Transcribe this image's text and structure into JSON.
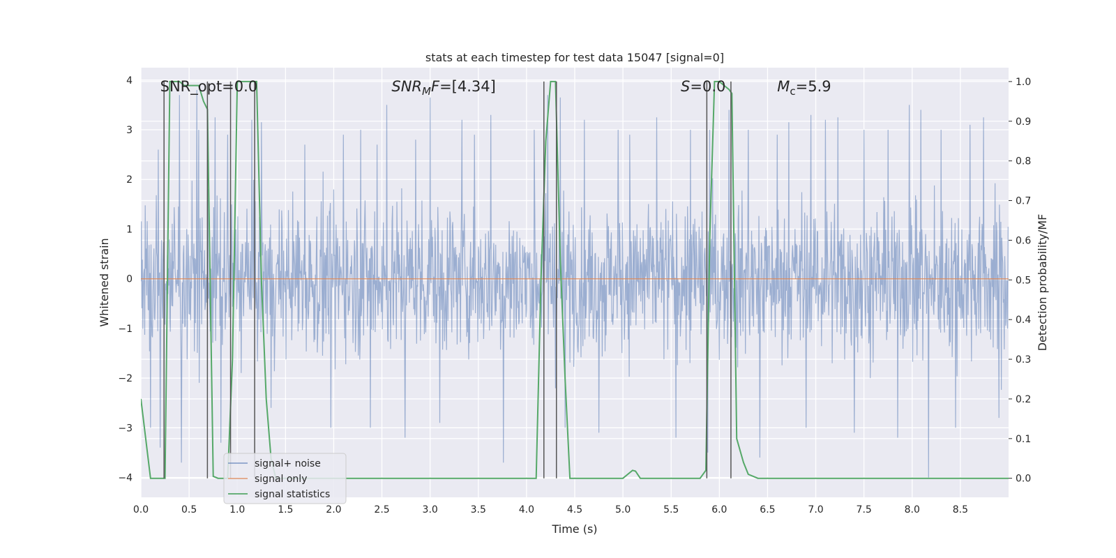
{
  "chart_data": {
    "type": "line",
    "title": "stats at each timestep for test data 15047 [signal=0]",
    "xlabel": "Time (s)",
    "ylabel": "Whitened strain",
    "ylabel_right": "Detection probability/MF",
    "xlim": [
      0,
      9.0
    ],
    "ylim": [
      -4.4,
      4.25
    ],
    "ylim_right": [
      -0.048,
      1.035
    ],
    "x_ticks": [
      0.0,
      0.5,
      1.0,
      1.5,
      2.0,
      2.5,
      3.0,
      3.5,
      4.0,
      4.5,
      5.0,
      5.5,
      6.0,
      6.5,
      7.0,
      7.5,
      8.0,
      8.5
    ],
    "x_tick_labels": [
      "0.0",
      "0.5",
      "1.0",
      "1.5",
      "2.0",
      "2.5",
      "3.0",
      "3.5",
      "4.0",
      "4.5",
      "5.0",
      "5.5",
      "6.0",
      "6.5",
      "7.0",
      "7.5",
      "8.0",
      "8.5"
    ],
    "y_ticks": [
      -4,
      -3,
      -2,
      -1,
      0,
      1,
      2,
      3,
      4
    ],
    "y_tick_labels": [
      "−4",
      "−3",
      "−2",
      "−1",
      "0",
      "1",
      "2",
      "3",
      "4"
    ],
    "y_ticks_right": [
      0.0,
      0.1,
      0.2,
      0.3,
      0.4,
      0.5,
      0.6,
      0.7,
      0.8,
      0.9,
      1.0
    ],
    "y_tick_labels_right": [
      "0.0",
      "0.1",
      "0.2",
      "0.3",
      "0.4",
      "0.5",
      "0.6",
      "0.7",
      "0.8",
      "0.9",
      "1.0"
    ],
    "grid": true,
    "legend_position": "lower-left",
    "annotations": [
      {
        "parts": [
          {
            "t": "SNR_opt=0.0",
            "i": false
          }
        ],
        "x": 0.2,
        "y": 3.9
      },
      {
        "parts": [
          {
            "t": "SNR",
            "i": true
          },
          {
            "t": "M",
            "i": true,
            "sub": true
          },
          {
            "t": "F",
            "i": true
          },
          {
            "t": "=[4.34]",
            "i": false
          }
        ],
        "x": 2.6,
        "y": 3.9
      },
      {
        "parts": [
          {
            "t": "S",
            "i": true
          },
          {
            "t": "=0.0",
            "i": false
          }
        ],
        "x": 5.6,
        "y": 3.9
      },
      {
        "parts": [
          {
            "t": "M",
            "i": true
          },
          {
            "t": "c",
            "i": false,
            "sub": true
          },
          {
            "t": "=5.9",
            "i": false
          }
        ],
        "x": 6.6,
        "y": 3.9
      }
    ],
    "series": [
      {
        "name": "signal+ noise",
        "color": "#4c72b0",
        "axis": "left",
        "sample_rate": 200,
        "duration": 9.0,
        "envelope_max": 2.6,
        "envelope_min": -2.5,
        "peaks": [
          {
            "x": 0.1,
            "y": -3.0
          },
          {
            "x": 0.18,
            "y": 2.6
          },
          {
            "x": 0.2,
            "y": -3.4
          },
          {
            "x": 0.4,
            "y": 3.7
          },
          {
            "x": 0.42,
            "y": -3.7
          },
          {
            "x": 0.58,
            "y": 3.8
          },
          {
            "x": 0.6,
            "y": 3.0
          },
          {
            "x": 0.77,
            "y": 3.25
          },
          {
            "x": 0.83,
            "y": -3.3
          },
          {
            "x": 0.9,
            "y": 2.9
          },
          {
            "x": 1.15,
            "y": 3.2
          },
          {
            "x": 1.25,
            "y": 3.15
          },
          {
            "x": 1.35,
            "y": -2.6
          },
          {
            "x": 1.7,
            "y": 2.7
          },
          {
            "x": 1.97,
            "y": -3.0
          },
          {
            "x": 2.1,
            "y": 2.9
          },
          {
            "x": 2.28,
            "y": 3.0
          },
          {
            "x": 2.38,
            "y": -3.0
          },
          {
            "x": 2.45,
            "y": 2.7
          },
          {
            "x": 2.55,
            "y": 3.5
          },
          {
            "x": 2.74,
            "y": -3.2
          },
          {
            "x": 2.85,
            "y": 2.8
          },
          {
            "x": 3.0,
            "y": 3.65
          },
          {
            "x": 3.1,
            "y": -2.9
          },
          {
            "x": 3.33,
            "y": 3.2
          },
          {
            "x": 3.46,
            "y": 2.9
          },
          {
            "x": 3.63,
            "y": 3.3
          },
          {
            "x": 3.76,
            "y": -3.7
          },
          {
            "x": 4.08,
            "y": 3.0
          },
          {
            "x": 4.22,
            "y": 3.7
          },
          {
            "x": 4.35,
            "y": 3.65
          },
          {
            "x": 4.4,
            "y": -3.0
          },
          {
            "x": 4.6,
            "y": 3.2
          },
          {
            "x": 4.75,
            "y": -3.1
          },
          {
            "x": 4.95,
            "y": 3.0
          },
          {
            "x": 5.07,
            "y": 2.9
          },
          {
            "x": 5.35,
            "y": 3.25
          },
          {
            "x": 5.55,
            "y": -3.2
          },
          {
            "x": 5.7,
            "y": 3.0
          },
          {
            "x": 5.88,
            "y": -3.5
          },
          {
            "x": 5.9,
            "y": 3.0
          },
          {
            "x": 6.1,
            "y": 3.4
          },
          {
            "x": 6.3,
            "y": 3.0
          },
          {
            "x": 6.42,
            "y": -3.6
          },
          {
            "x": 6.6,
            "y": 2.9
          },
          {
            "x": 6.72,
            "y": 3.15
          },
          {
            "x": 6.9,
            "y": -3.0
          },
          {
            "x": 6.95,
            "y": 3.3
          },
          {
            "x": 7.1,
            "y": 3.2
          },
          {
            "x": 7.23,
            "y": 3.25
          },
          {
            "x": 7.4,
            "y": -3.1
          },
          {
            "x": 7.5,
            "y": 3.0
          },
          {
            "x": 7.75,
            "y": 3.0
          },
          {
            "x": 7.85,
            "y": -3.2
          },
          {
            "x": 7.97,
            "y": 3.5
          },
          {
            "x": 8.09,
            "y": 3.4
          },
          {
            "x": 8.17,
            "y": -4.0
          },
          {
            "x": 8.3,
            "y": 3.0
          },
          {
            "x": 8.45,
            "y": -3.0
          },
          {
            "x": 8.6,
            "y": 3.1
          },
          {
            "x": 8.74,
            "y": 3.25
          },
          {
            "x": 8.9,
            "y": -2.8
          }
        ]
      },
      {
        "name": "signal only",
        "color": "#dd8452",
        "axis": "left",
        "x": [
          0.0,
          9.0
        ],
        "y": [
          0.0,
          0.0
        ]
      },
      {
        "name": "signal statistics",
        "color": "#55a868",
        "axis": "right",
        "x": [
          0.0,
          0.05,
          0.1,
          0.2,
          0.25,
          0.3,
          0.35,
          0.4,
          0.45,
          0.5,
          0.55,
          0.6,
          0.65,
          0.69,
          0.75,
          0.8,
          0.85,
          0.9,
          0.95,
          1.0,
          1.05,
          1.1,
          1.15,
          1.2,
          1.25,
          1.3,
          1.35,
          1.4,
          1.5,
          2.0,
          3.0,
          4.0,
          4.1,
          4.15,
          4.2,
          4.25,
          4.3,
          4.35,
          4.4,
          4.45,
          4.6,
          5.0,
          5.05,
          5.1,
          5.13,
          5.18,
          5.3,
          5.8,
          5.86,
          5.9,
          5.95,
          6.0,
          6.05,
          6.1,
          6.13,
          6.18,
          6.25,
          6.3,
          6.4,
          7.0,
          8.0,
          8.1,
          8.2,
          8.5,
          9.0
        ],
        "y": [
          0.2,
          0.1,
          0.0,
          0.0,
          0.0,
          1.0,
          1.0,
          1.0,
          0.99,
          0.99,
          0.99,
          0.99,
          0.95,
          0.93,
          0.005,
          0.0,
          0.0,
          0.0,
          0.3,
          1.0,
          1.0,
          1.0,
          1.0,
          1.0,
          0.5,
          0.2,
          0.05,
          0.0,
          0.0,
          0.0,
          0.0,
          0.0,
          0.0,
          0.5,
          0.85,
          1.0,
          1.0,
          0.55,
          0.25,
          0.0,
          0.0,
          0.0,
          0.01,
          0.02,
          0.018,
          0.0,
          0.0,
          0.0,
          0.02,
          0.6,
          1.0,
          1.0,
          0.99,
          0.98,
          0.97,
          0.1,
          0.04,
          0.01,
          0.0,
          0.0,
          0.0,
          0.0,
          0.0,
          0.0,
          0.0
        ]
      }
    ],
    "vertical_markers": {
      "color": "#555555",
      "x": [
        0.24,
        0.69,
        0.93,
        1.18,
        4.18,
        4.31,
        5.87,
        6.12
      ]
    }
  }
}
